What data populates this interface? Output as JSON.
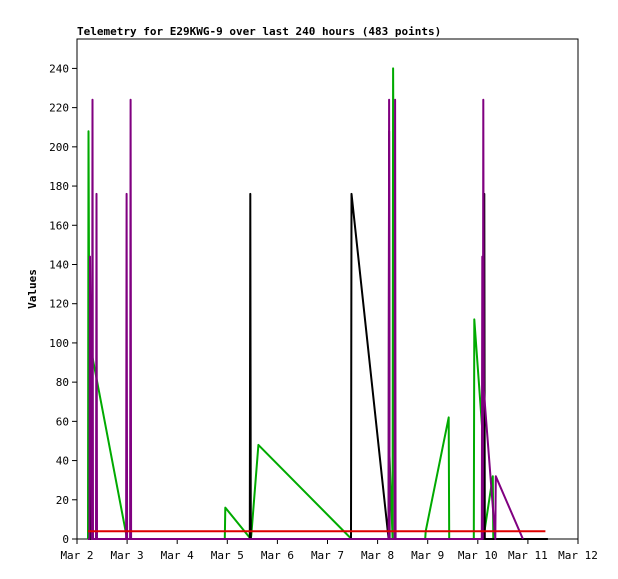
{
  "chart_data": {
    "type": "line",
    "title": "Telemetry for E29KWG-9 over last 240 hours (483 points)",
    "xlabel": "",
    "ylabel": "Values",
    "xlim": [
      2.0,
      12.0
    ],
    "ylim": [
      0,
      255
    ],
    "x_tick_labels": [
      "Mar 2",
      "Mar 3",
      "Mar 4",
      "Mar 5",
      "Mar 6",
      "Mar 7",
      "Mar 8",
      "Mar 9",
      "Mar 10",
      "Mar 11",
      "Mar 12"
    ],
    "y_ticks": [
      0,
      20,
      40,
      60,
      80,
      100,
      120,
      140,
      160,
      180,
      200,
      220,
      240
    ],
    "grid": false,
    "legend": "none",
    "series": [
      {
        "color": "#00aa00",
        "x": [
          2.22,
          2.23,
          2.26,
          2.27,
          3.0,
          3.01,
          4.95,
          4.96,
          5.47,
          5.48,
          5.62,
          7.48,
          7.49,
          8.22,
          8.23,
          8.3,
          8.31,
          8.35,
          8.36,
          8.95,
          8.96,
          9.42,
          9.43,
          9.92,
          9.93,
          10.1,
          10.11,
          10.3,
          10.31,
          10.5
        ],
        "y": [
          0,
          208,
          0,
          98,
          0,
          0,
          0,
          16,
          0,
          2,
          48,
          0,
          0,
          0,
          48,
          0,
          240,
          0,
          0,
          0,
          4,
          62,
          0,
          0,
          112,
          52,
          0,
          32,
          0,
          0
        ]
      },
      {
        "color": "#000000",
        "x": [
          2.22,
          2.27,
          2.28,
          2.3,
          3.0,
          5.45,
          5.46,
          5.47,
          7.47,
          7.48,
          8.22,
          8.23,
          8.24,
          10.12,
          10.13,
          10.14,
          10.15,
          10.9,
          11.4
        ],
        "y": [
          0,
          0,
          98,
          0,
          0,
          0,
          176,
          0,
          0,
          176,
          0,
          208,
          0,
          0,
          176,
          0,
          0,
          0,
          0
        ]
      },
      {
        "color": "#800080",
        "x": [
          2.22,
          2.25,
          2.26,
          2.3,
          2.31,
          2.32,
          2.38,
          2.39,
          2.4,
          2.98,
          2.99,
          3.0,
          3.06,
          3.07,
          3.08,
          8.22,
          8.23,
          8.24,
          8.34,
          8.35,
          8.36,
          10.08,
          10.09,
          10.1,
          10.11,
          10.12,
          10.35,
          10.36,
          10.9
        ],
        "y": [
          0,
          0,
          144,
          0,
          224,
          0,
          0,
          176,
          0,
          0,
          176,
          0,
          0,
          224,
          0,
          0,
          224,
          0,
          0,
          224,
          0,
          0,
          144,
          0,
          224,
          76,
          0,
          32,
          0
        ]
      },
      {
        "color": "#dd0000",
        "x": [
          2.22,
          11.35
        ],
        "y": [
          4,
          4
        ]
      }
    ]
  }
}
